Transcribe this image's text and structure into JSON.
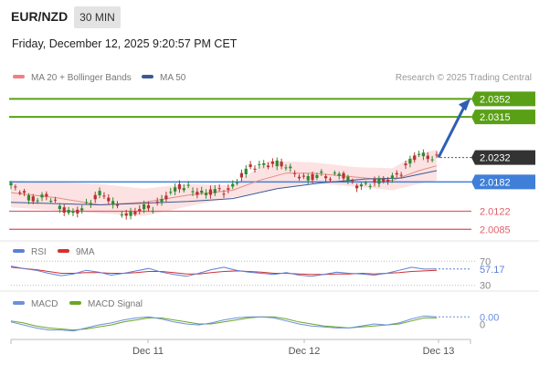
{
  "header": {
    "symbol": "EUR/NZD",
    "timeframe": "30 MIN",
    "timestamp": "Friday, December 12, 2025 9:20:57 PM CET"
  },
  "legend": {
    "ma20": "MA 20 + Bollinger Bands",
    "ma50": "MA 50",
    "credit": "Research © 2025 Trading Central",
    "rsi": "RSI",
    "rsi_ma": "9MA",
    "macd": "MACD",
    "macd_signal": "MACD Signal"
  },
  "colors": {
    "target": "#5aa016",
    "pivot": "#3f7fd8",
    "support": "#e0606a",
    "current": "#333333",
    "bollinger": "#fbd8d8",
    "ma20": "#e58b86",
    "ma50": "#3a5a96",
    "candle_up": "#2f8a2f",
    "candle_down": "#b83232",
    "rsi": "#5b7fd8",
    "rsi_ma": "#d43030",
    "macd": "#6b8fdd",
    "macd_signal": "#6aa624"
  },
  "chart_data": [
    {
      "type": "candlestick",
      "title": "EUR/NZD",
      "x_ticks": [
        "Dec 11",
        "Dec 12",
        "Dec 13"
      ],
      "ylim": [
        2.0065,
        2.0375
      ],
      "levels": [
        {
          "name": "resistance-2",
          "value": 2.0352,
          "label": "2.0352",
          "style": "target"
        },
        {
          "name": "resistance-1",
          "value": 2.0315,
          "label": "2.0315",
          "style": "target"
        },
        {
          "name": "last-price",
          "value": 2.0232,
          "label": "2.0232",
          "style": "current"
        },
        {
          "name": "pivot",
          "value": 2.0182,
          "label": "2.0182",
          "style": "pivot"
        },
        {
          "name": "support-1",
          "value": 2.0122,
          "label": "2.0122",
          "style": "support"
        },
        {
          "name": "support-2",
          "value": 2.0085,
          "label": "2.0085",
          "style": "support"
        }
      ],
      "arrow": {
        "from": 2.0232,
        "to": 2.0352,
        "direction": "up"
      },
      "price_path": [
        [
          0,
          2.0175
        ],
        [
          2,
          2.0165
        ],
        [
          4,
          2.015
        ],
        [
          6,
          2.0145
        ],
        [
          8,
          2.0155
        ],
        [
          10,
          2.014
        ],
        [
          12,
          2.0125
        ],
        [
          14,
          2.0118
        ],
        [
          16,
          2.0128
        ],
        [
          18,
          2.0142
        ],
        [
          20,
          2.0158
        ],
        [
          22,
          2.0148
        ],
        [
          24,
          2.013
        ],
        [
          26,
          2.0112
        ],
        [
          28,
          2.012
        ],
        [
          30,
          2.013
        ],
        [
          32,
          2.0128
        ],
        [
          34,
          2.0145
        ],
        [
          36,
          2.016
        ],
        [
          38,
          2.0172
        ],
        [
          40,
          2.017
        ],
        [
          42,
          2.016
        ],
        [
          44,
          2.0158
        ],
        [
          46,
          2.0165
        ],
        [
          48,
          2.0162
        ],
        [
          50,
          2.0172
        ],
        [
          52,
          2.0195
        ],
        [
          54,
          2.0212
        ],
        [
          56,
          2.0215
        ],
        [
          58,
          2.0218
        ],
        [
          60,
          2.022
        ],
        [
          62,
          2.0215
        ],
        [
          64,
          2.02
        ],
        [
          66,
          2.019
        ],
        [
          68,
          2.0192
        ],
        [
          70,
          2.0198
        ],
        [
          72,
          2.019
        ],
        [
          74,
          2.02
        ],
        [
          76,
          2.0188
        ],
        [
          78,
          2.0175
        ],
        [
          80,
          2.0175
        ],
        [
          82,
          2.0182
        ],
        [
          84,
          2.0185
        ],
        [
          86,
          2.019
        ],
        [
          88,
          2.0202
        ],
        [
          90,
          2.0225
        ],
        [
          92,
          2.024
        ],
        [
          94,
          2.0232
        ],
        [
          96,
          2.0232
        ]
      ],
      "ma20": [
        [
          0,
          2.016
        ],
        [
          10,
          2.015
        ],
        [
          20,
          2.0135
        ],
        [
          30,
          2.014
        ],
        [
          40,
          2.0155
        ],
        [
          50,
          2.0165
        ],
        [
          56,
          2.0185
        ],
        [
          62,
          2.02
        ],
        [
          68,
          2.02
        ],
        [
          74,
          2.0195
        ],
        [
          80,
          2.019
        ],
        [
          86,
          2.0185
        ],
        [
          92,
          2.0205
        ],
        [
          96,
          2.0215
        ]
      ],
      "ma50": [
        [
          0,
          2.014
        ],
        [
          20,
          2.0135
        ],
        [
          40,
          2.0142
        ],
        [
          50,
          2.0148
        ],
        [
          60,
          2.0168
        ],
        [
          70,
          2.018
        ],
        [
          80,
          2.0188
        ],
        [
          88,
          2.019
        ],
        [
          96,
          2.0205
        ]
      ],
      "bollinger": {
        "upper": [
          [
            0,
            2.0185
          ],
          [
            20,
            2.0178
          ],
          [
            30,
            2.0168
          ],
          [
            40,
            2.0178
          ],
          [
            50,
            2.0175
          ],
          [
            58,
            2.0225
          ],
          [
            68,
            2.0222
          ],
          [
            78,
            2.0212
          ],
          [
            86,
            2.021
          ],
          [
            92,
            2.024
          ],
          [
            96,
            2.0248
          ]
        ],
        "lower": [
          [
            0,
            2.013
          ],
          [
            20,
            2.0118
          ],
          [
            30,
            2.0112
          ],
          [
            40,
            2.0132
          ],
          [
            50,
            2.015
          ],
          [
            58,
            2.0165
          ],
          [
            68,
            2.018
          ],
          [
            78,
            2.0172
          ],
          [
            86,
            2.0165
          ],
          [
            92,
            2.0178
          ],
          [
            96,
            2.0185
          ]
        ]
      }
    },
    {
      "type": "line",
      "title": "RSI",
      "ylim": [
        25,
        75
      ],
      "y_ticks": [
        "70",
        "30"
      ],
      "last_value": "57.17",
      "series": [
        {
          "name": "RSI",
          "values": [
            62,
            58,
            55,
            50,
            46,
            49,
            55,
            52,
            47,
            50,
            54,
            58,
            52,
            48,
            45,
            50,
            56,
            60,
            55,
            52,
            50,
            48,
            51,
            47,
            45,
            48,
            52,
            50,
            49,
            47,
            50,
            55,
            60,
            57,
            57.17
          ]
        },
        {
          "name": "9MA",
          "values": [
            60,
            58,
            56,
            53,
            50,
            50,
            51,
            51,
            50,
            50,
            51,
            53,
            53,
            51,
            49,
            49,
            51,
            53,
            54,
            53,
            52,
            50,
            50,
            49,
            48,
            48,
            49,
            49,
            50,
            49,
            50,
            51,
            53,
            54,
            55
          ]
        }
      ]
    },
    {
      "type": "line",
      "title": "MACD",
      "ylim": [
        -0.0014,
        0.0006
      ],
      "y_ticks": [
        "0"
      ],
      "last_value": "0.00",
      "series": [
        {
          "name": "MACD",
          "values": [
            -0.0002,
            -0.0005,
            -0.0008,
            -0.001,
            -0.001,
            -0.0011,
            -0.0008,
            -0.0005,
            -0.0003,
            0.0,
            0.0002,
            0.0003,
            0.0001,
            -0.0002,
            -0.0004,
            -0.0005,
            -0.0003,
            0.0,
            0.0002,
            0.0003,
            0.0003,
            0.0002,
            -0.0001,
            -0.0004,
            -0.0006,
            -0.0007,
            -0.0008,
            -0.0008,
            -0.0006,
            -0.0004,
            -0.0005,
            -0.0003,
            0.0001,
            0.0004,
            0.0003
          ]
        },
        {
          "name": "MACD Signal",
          "values": [
            -0.0001,
            -0.0003,
            -0.0006,
            -0.0008,
            -0.0009,
            -0.001,
            -0.0009,
            -0.0007,
            -0.0005,
            -0.0002,
            0.0,
            0.0002,
            0.0002,
            0.0,
            -0.0002,
            -0.0004,
            -0.0004,
            -0.0002,
            0.0,
            0.0002,
            0.0003,
            0.0003,
            0.0001,
            -0.0002,
            -0.0004,
            -0.0006,
            -0.0007,
            -0.0008,
            -0.0007,
            -0.0006,
            -0.0005,
            -0.0004,
            -0.0001,
            0.0002,
            0.0002
          ]
        }
      ]
    }
  ]
}
